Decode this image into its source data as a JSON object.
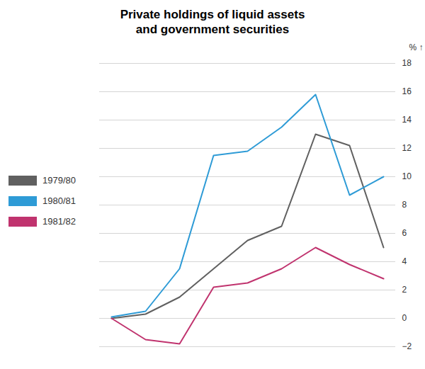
{
  "chart_data": {
    "type": "line",
    "title": "Private holdings of liquid assets\nand government securities",
    "ylabel": "%",
    "categories": [
      null,
      null,
      null,
      null,
      null,
      null,
      null,
      null,
      null
    ],
    "series": [
      {
        "name": "1979/80",
        "color": "#606060",
        "values": [
          0.0,
          0.3,
          1.5,
          3.5,
          5.5,
          6.5,
          13.0,
          12.2,
          5.0
        ]
      },
      {
        "name": "1980/81",
        "color": "#2e9bd6",
        "values": [
          0.1,
          0.5,
          3.5,
          11.5,
          11.8,
          13.5,
          15.8,
          8.7,
          10.0
        ]
      },
      {
        "name": "1981/82",
        "color": "#c0336e",
        "values": [
          0.0,
          -1.5,
          -1.8,
          2.2,
          2.5,
          3.5,
          5.0,
          3.8,
          2.8
        ]
      }
    ],
    "ylim": [
      -2,
      18
    ],
    "yticks": [
      -2,
      0,
      2,
      4,
      6,
      8,
      10,
      12,
      14,
      16,
      18
    ],
    "grid": true,
    "legend": "left",
    "tick_labels": "y"
  }
}
